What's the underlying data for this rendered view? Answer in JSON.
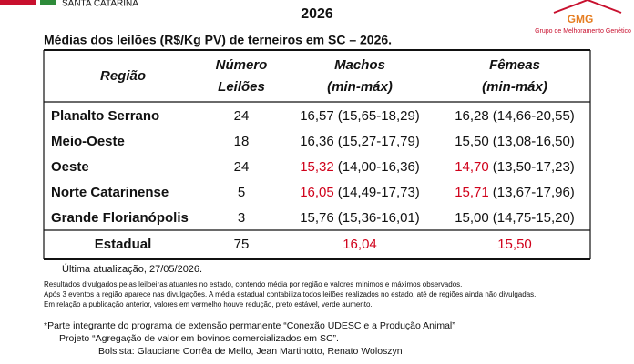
{
  "header": {
    "org": "SANTA CATARINA",
    "title": "2026",
    "logo_text": "GMG",
    "logo_caption": "Grupo de Melhoramento Genético"
  },
  "table": {
    "caption": "Médias dos leilões (R$/Kg PV) de terneiros em SC – 2026.",
    "headers": [
      [
        "Região"
      ],
      [
        "Número",
        "Leilões"
      ],
      [
        "Machos",
        "(min-máx)"
      ],
      [
        "Fêmeas",
        "(min-máx)"
      ]
    ],
    "highlight_color": "#d0021b",
    "rows": [
      {
        "region": "Planalto Serrano",
        "count": "24",
        "machos": "16,57",
        "machos_range": "(15,65-18,29)",
        "femeas": "16,28",
        "femeas_range": "(14,66-20,55)",
        "machos_highlight": false,
        "femeas_highlight": false
      },
      {
        "region": "Meio-Oeste",
        "count": "18",
        "machos": "16,36",
        "machos_range": "(15,27-17,79)",
        "femeas": "15,50",
        "femeas_range": "(13,08-16,50)",
        "machos_highlight": false,
        "femeas_highlight": false
      },
      {
        "region": "Oeste",
        "count": "24",
        "machos": "15,32",
        "machos_range": "(14,00-16,36)",
        "femeas": "14,70",
        "femeas_range": "(13,50-17,23)",
        "machos_highlight": true,
        "femeas_highlight": true
      },
      {
        "region": "Norte Catarinense",
        "count": "5",
        "machos": "16,05",
        "machos_range": "(14,49-17,73)",
        "femeas": "15,71",
        "femeas_range": "(13,67-17,96)",
        "machos_highlight": true,
        "femeas_highlight": true
      },
      {
        "region": "Grande Florianópolis",
        "count": "3",
        "machos": "15,76",
        "machos_range": "(15,36-16,01)",
        "femeas": "15,00",
        "femeas_range": "(14,75-15,20)",
        "machos_highlight": false,
        "femeas_highlight": false
      }
    ],
    "total": {
      "region": "Estadual",
      "count": "75",
      "machos": "16,04",
      "femeas": "15,50",
      "machos_highlight": true,
      "femeas_highlight": true
    }
  },
  "footer": {
    "updated": "Última atualização, 27/05/2026.",
    "notes": [
      "Resultados divulgados pelas leiloeiras atuantes no estado, contendo média por região e valores mínimos e máximos observados.",
      "Após 3 eventos a região aparece nas divulgações. A média estadual contabiliza todos leilões realizados no estado, até de regiões ainda não divulgadas.",
      "Em relação a publicação anterior, valores em vermelho houve redução, preto estável, verde aumento."
    ],
    "credits": [
      "*Parte integrante do programa de extensão permanente “Conexão UDESC e a Produção Animal”",
      "Projeto “Agregação de valor em bovinos comercializados em SC”.",
      "Bolsista: Glauciane Corrêa de Mello, Jean Martinotto, Renato Woloszyn"
    ]
  }
}
